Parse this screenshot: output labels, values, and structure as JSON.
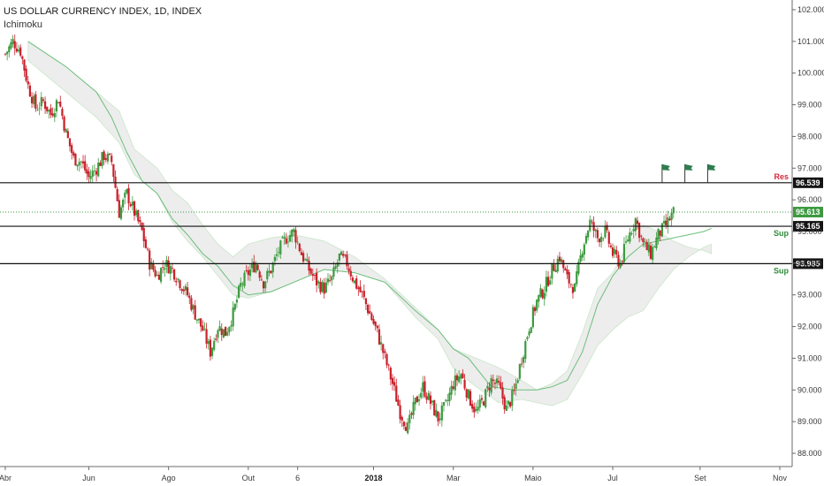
{
  "header": {
    "title": "US DOLLAR CURRENCY INDEX, 1D, INDEX",
    "indicator": "Ichimoku"
  },
  "colors": {
    "up": "#3d9a40",
    "down": "#c8202a",
    "cloud_fill": "#e9e9e9",
    "cloud_edge": "#c9e6c9",
    "baseline": "#6cbf7a",
    "support_label": "#2e8b3a",
    "resistance_label": "#d6263a",
    "last_price_tag": "#3d9a40",
    "level_tag": "#141414",
    "flag": "#2e7d4f"
  },
  "chart_data": {
    "type": "candlestick",
    "title": "US DOLLAR CURRENCY INDEX, 1D, INDEX",
    "ylim": [
      87.9,
      102.2
    ],
    "xlim": [
      0,
      104
    ],
    "y_ticks": [
      "102.000",
      "101.000",
      "100.000",
      "99.000",
      "98.000",
      "97.000",
      "96.000",
      "95.000",
      "94.000",
      "93.000",
      "92.000",
      "91.000",
      "90.000",
      "89.000",
      "88.000"
    ],
    "x_ticks": [
      {
        "label": "Abr",
        "x": 0,
        "bold": false
      },
      {
        "label": "Jun",
        "x": 11,
        "bold": false
      },
      {
        "label": "Ago",
        "x": 21.5,
        "bold": false
      },
      {
        "label": "Out",
        "x": 32,
        "bold": false
      },
      {
        "label": "6",
        "x": 38.5,
        "bold": false
      },
      {
        "label": "2018",
        "x": 48.5,
        "bold": true
      },
      {
        "label": "Mar",
        "x": 59,
        "bold": false
      },
      {
        "label": "Maio",
        "x": 69.5,
        "bold": false
      },
      {
        "label": "Jul",
        "x": 80,
        "bold": false
      },
      {
        "label": "Set",
        "x": 91.5,
        "bold": false
      },
      {
        "label": "Nov",
        "x": 102,
        "bold": false
      }
    ],
    "close_series": [
      [
        0,
        100.6
      ],
      [
        1,
        101.0
      ],
      [
        2,
        100.7
      ],
      [
        3,
        99.6
      ],
      [
        4,
        98.9
      ],
      [
        5,
        99.1
      ],
      [
        6,
        98.7
      ],
      [
        7,
        99.2
      ],
      [
        8,
        98.1
      ],
      [
        9,
        97.3
      ],
      [
        10,
        97.2
      ],
      [
        11,
        96.7
      ],
      [
        12,
        97.0
      ],
      [
        13,
        97.4
      ],
      [
        14,
        97.2
      ],
      [
        15,
        95.6
      ],
      [
        16,
        96.2
      ],
      [
        17,
        95.6
      ],
      [
        18,
        95.0
      ],
      [
        19,
        94.0
      ],
      [
        20,
        93.6
      ],
      [
        21,
        94.0
      ],
      [
        22,
        93.8
      ],
      [
        23,
        93.4
      ],
      [
        24,
        93.0
      ],
      [
        25,
        92.4
      ],
      [
        26,
        91.9
      ],
      [
        27,
        91.2
      ],
      [
        28,
        92.0
      ],
      [
        29,
        91.8
      ],
      [
        30,
        92.4
      ],
      [
        31,
        93.3
      ],
      [
        32,
        93.7
      ],
      [
        33,
        94.0
      ],
      [
        34,
        93.4
      ],
      [
        35,
        93.8
      ],
      [
        36,
        94.4
      ],
      [
        37,
        94.8
      ],
      [
        38,
        95.0
      ],
      [
        39,
        94.3
      ],
      [
        40,
        93.8
      ],
      [
        41,
        93.4
      ],
      [
        42,
        93.2
      ],
      [
        43,
        93.5
      ],
      [
        44,
        94.2
      ],
      [
        45,
        94.0
      ],
      [
        46,
        93.4
      ],
      [
        47,
        93.0
      ],
      [
        48,
        92.4
      ],
      [
        49,
        91.8
      ],
      [
        50,
        91.0
      ],
      [
        51,
        90.2
      ],
      [
        52,
        89.3
      ],
      [
        53,
        88.8
      ],
      [
        54,
        89.6
      ],
      [
        55,
        90.1
      ],
      [
        56,
        89.6
      ],
      [
        57,
        89.1
      ],
      [
        58,
        89.5
      ],
      [
        59,
        90.2
      ],
      [
        60,
        90.5
      ],
      [
        61,
        89.8
      ],
      [
        62,
        89.3
      ],
      [
        63,
        89.7
      ],
      [
        64,
        90.3
      ],
      [
        65,
        90.1
      ],
      [
        66,
        89.4
      ],
      [
        67,
        89.9
      ],
      [
        68,
        91.0
      ],
      [
        69,
        92.0
      ],
      [
        70,
        92.8
      ],
      [
        71,
        93.2
      ],
      [
        72,
        93.8
      ],
      [
        73,
        94.2
      ],
      [
        74,
        93.5
      ],
      [
        75,
        93.2
      ],
      [
        76,
        94.5
      ],
      [
        77,
        95.3
      ],
      [
        78,
        94.8
      ],
      [
        79,
        95.0
      ],
      [
        80,
        94.3
      ],
      [
        81,
        94.0
      ],
      [
        82,
        94.8
      ],
      [
        83,
        95.4
      ],
      [
        84,
        94.6
      ],
      [
        85,
        94.3
      ],
      [
        86,
        94.9
      ],
      [
        87,
        95.2
      ],
      [
        88,
        95.6
      ]
    ],
    "cloud": {
      "upper": [
        [
          3,
          101.0
        ],
        [
          8,
          100.2
        ],
        [
          12,
          99.4
        ],
        [
          15,
          98.8
        ],
        [
          17,
          97.6
        ],
        [
          20,
          97.0
        ],
        [
          22,
          96.3
        ],
        [
          24,
          95.9
        ],
        [
          26,
          95.2
        ],
        [
          28,
          94.6
        ],
        [
          30,
          94.2
        ],
        [
          32,
          94.6
        ],
        [
          35,
          94.8
        ],
        [
          38,
          94.9
        ],
        [
          42,
          94.7
        ],
        [
          46,
          94.2
        ],
        [
          50,
          93.5
        ],
        [
          54,
          92.6
        ],
        [
          57,
          91.9
        ],
        [
          59,
          91.3
        ],
        [
          62,
          91.0
        ],
        [
          65,
          90.7
        ],
        [
          68,
          90.3
        ],
        [
          70,
          90.0
        ],
        [
          72,
          90.2
        ],
        [
          74,
          90.6
        ],
        [
          76,
          91.8
        ],
        [
          78,
          93.2
        ],
        [
          80,
          93.7
        ],
        [
          82,
          94.6
        ],
        [
          84,
          95.2
        ],
        [
          86,
          95.0
        ],
        [
          88,
          94.7
        ],
        [
          90,
          94.5
        ],
        [
          92,
          94.4
        ],
        [
          93,
          94.3
        ]
      ],
      "lower": [
        [
          3,
          100.4
        ],
        [
          8,
          99.4
        ],
        [
          12,
          98.6
        ],
        [
          15,
          97.8
        ],
        [
          17,
          96.8
        ],
        [
          20,
          96.2
        ],
        [
          22,
          95.3
        ],
        [
          24,
          94.7
        ],
        [
          26,
          94.2
        ],
        [
          28,
          93.6
        ],
        [
          30,
          93.0
        ],
        [
          32,
          92.9
        ],
        [
          35,
          93.1
        ],
        [
          38,
          93.4
        ],
        [
          42,
          93.8
        ],
        [
          46,
          93.7
        ],
        [
          50,
          93.4
        ],
        [
          54,
          92.3
        ],
        [
          57,
          91.6
        ],
        [
          59,
          90.7
        ],
        [
          62,
          90.1
        ],
        [
          65,
          89.6
        ],
        [
          68,
          89.7
        ],
        [
          70,
          89.6
        ],
        [
          72,
          89.5
        ],
        [
          74,
          89.7
        ],
        [
          76,
          90.5
        ],
        [
          78,
          91.4
        ],
        [
          80,
          91.9
        ],
        [
          82,
          92.3
        ],
        [
          84,
          92.5
        ],
        [
          86,
          93.2
        ],
        [
          88,
          93.8
        ],
        [
          90,
          94.2
        ],
        [
          92,
          94.5
        ],
        [
          93,
          94.6
        ]
      ]
    },
    "green_line": [
      [
        3,
        101.0
      ],
      [
        8,
        100.2
      ],
      [
        12,
        99.4
      ],
      [
        14,
        98.6
      ],
      [
        16,
        97.5
      ],
      [
        18,
        96.6
      ],
      [
        20,
        96.2
      ],
      [
        22,
        95.4
      ],
      [
        24,
        94.9
      ],
      [
        26,
        94.3
      ],
      [
        28,
        93.9
      ],
      [
        30,
        93.3
      ],
      [
        32,
        93.0
      ],
      [
        35,
        93.1
      ],
      [
        38,
        93.4
      ],
      [
        42,
        93.8
      ],
      [
        46,
        93.7
      ],
      [
        50,
        93.4
      ],
      [
        54,
        92.5
      ],
      [
        57,
        91.9
      ],
      [
        59,
        91.3
      ],
      [
        61,
        91.0
      ],
      [
        64,
        90.1
      ],
      [
        67,
        90.0
      ],
      [
        70,
        90.0
      ],
      [
        72,
        90.1
      ],
      [
        74,
        90.3
      ],
      [
        76,
        91.2
      ],
      [
        78,
        92.7
      ],
      [
        80,
        93.6
      ],
      [
        82,
        94.2
      ],
      [
        84,
        94.6
      ],
      [
        86,
        94.7
      ],
      [
        88,
        94.8
      ],
      [
        90,
        94.9
      ],
      [
        92,
        95.0
      ],
      [
        93,
        95.1
      ]
    ],
    "levels": [
      {
        "value": 96.539,
        "tag": "96.539",
        "label": "Res",
        "kind": "res"
      },
      {
        "value": 95.165,
        "tag": "95.165",
        "label": "Sup",
        "kind": "sup"
      },
      {
        "value": 93.985,
        "tag": "93.985",
        "label": "Sup",
        "kind": "sup"
      }
    ],
    "last_price": {
      "value": 95.613,
      "tag": "95.613"
    },
    "flags": [
      {
        "x": 86.5,
        "y": 96.9
      },
      {
        "x": 89.5,
        "y": 96.9
      },
      {
        "x": 92.5,
        "y": 96.9
      }
    ]
  }
}
